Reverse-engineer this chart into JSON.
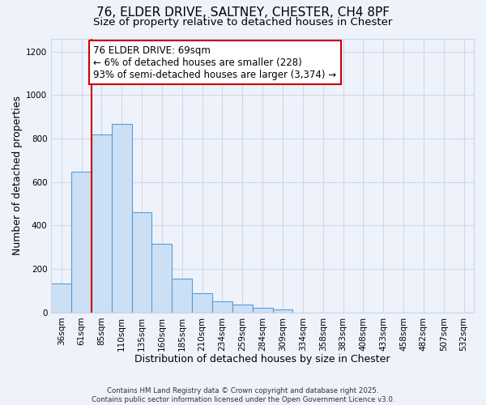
{
  "title": "76, ELDER DRIVE, SALTNEY, CHESTER, CH4 8PF",
  "subtitle": "Size of property relative to detached houses in Chester",
  "xlabel": "Distribution of detached houses by size in Chester",
  "ylabel": "Number of detached properties",
  "bar_labels": [
    "36sqm",
    "61sqm",
    "85sqm",
    "110sqm",
    "135sqm",
    "160sqm",
    "185sqm",
    "210sqm",
    "234sqm",
    "259sqm",
    "284sqm",
    "309sqm",
    "334sqm",
    "358sqm",
    "383sqm",
    "408sqm",
    "433sqm",
    "458sqm",
    "482sqm",
    "507sqm",
    "532sqm"
  ],
  "bar_values": [
    133,
    648,
    820,
    868,
    460,
    315,
    157,
    90,
    50,
    38,
    20,
    13,
    0,
    0,
    0,
    0,
    0,
    0,
    0,
    0,
    0
  ],
  "bar_color": "#cce0f5",
  "bar_edge_color": "#5b9bd5",
  "vline_color": "#cc0000",
  "vline_x_index": 1.5,
  "ylim": [
    0,
    1260
  ],
  "yticks": [
    0,
    200,
    400,
    600,
    800,
    1000,
    1200
  ],
  "annotation_text": "76 ELDER DRIVE: 69sqm\n← 6% of detached houses are smaller (228)\n93% of semi-detached houses are larger (3,374) →",
  "annotation_box_color": "#ffffff",
  "annotation_box_edge_color": "#cc0000",
  "footer_line1": "Contains HM Land Registry data © Crown copyright and database right 2025.",
  "footer_line2": "Contains public sector information licensed under the Open Government Licence v3.0.",
  "background_color": "#eef2fb",
  "grid_color": "#d0d8e8",
  "title_fontsize": 11,
  "subtitle_fontsize": 9.5,
  "axis_label_fontsize": 9,
  "tick_fontsize": 7.5,
  "annotation_fontsize": 8.5
}
